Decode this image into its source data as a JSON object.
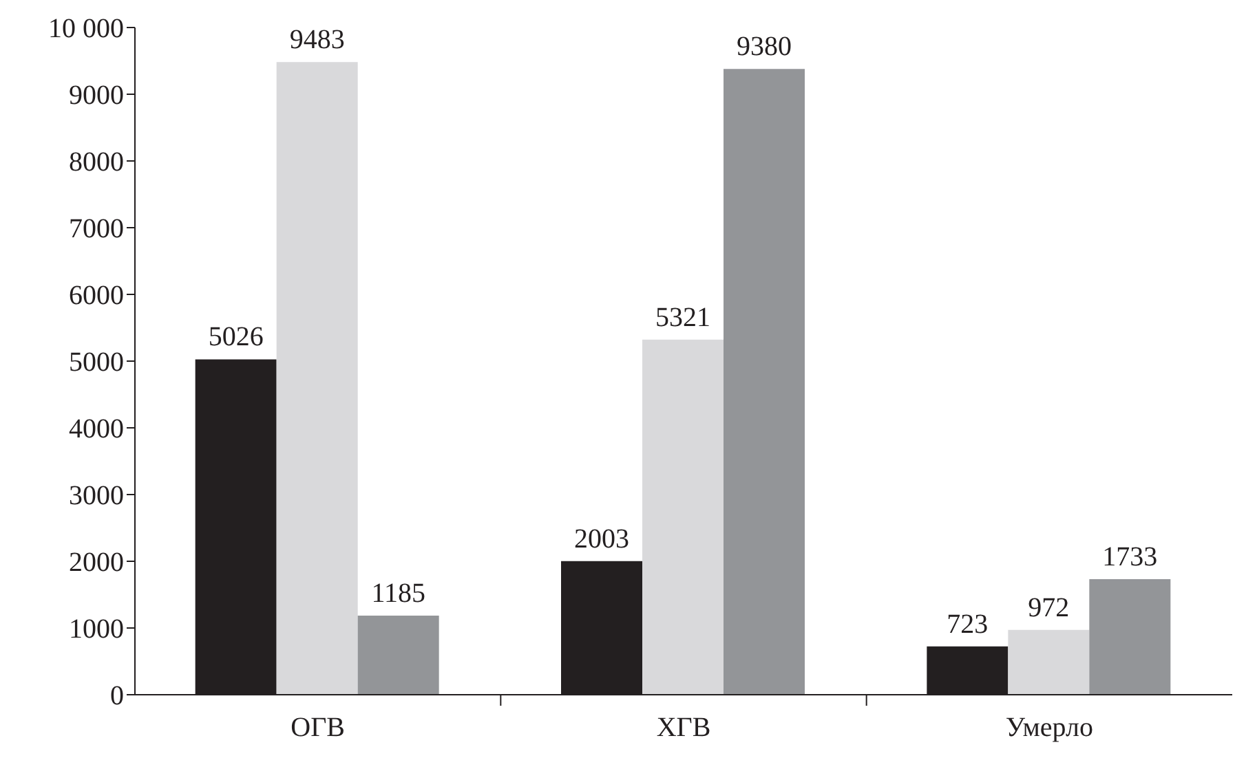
{
  "chart_data": {
    "type": "bar",
    "categories": [
      "ОГВ",
      "ХГВ",
      "Умерло"
    ],
    "series": [
      {
        "color": "#231f20",
        "values": [
          5026,
          2003,
          723
        ]
      },
      {
        "color": "#d9d9db",
        "values": [
          9483,
          5321,
          972
        ]
      },
      {
        "color": "#939598",
        "values": [
          1185,
          9380,
          1733
        ]
      }
    ],
    "ylim": [
      0,
      10000
    ],
    "yticks": [
      0,
      1000,
      2000,
      3000,
      4000,
      5000,
      6000,
      7000,
      8000,
      9000,
      {
        "value": 10000,
        "label": "10 000"
      }
    ],
    "data_labels": true,
    "grid": false,
    "legend": false
  }
}
